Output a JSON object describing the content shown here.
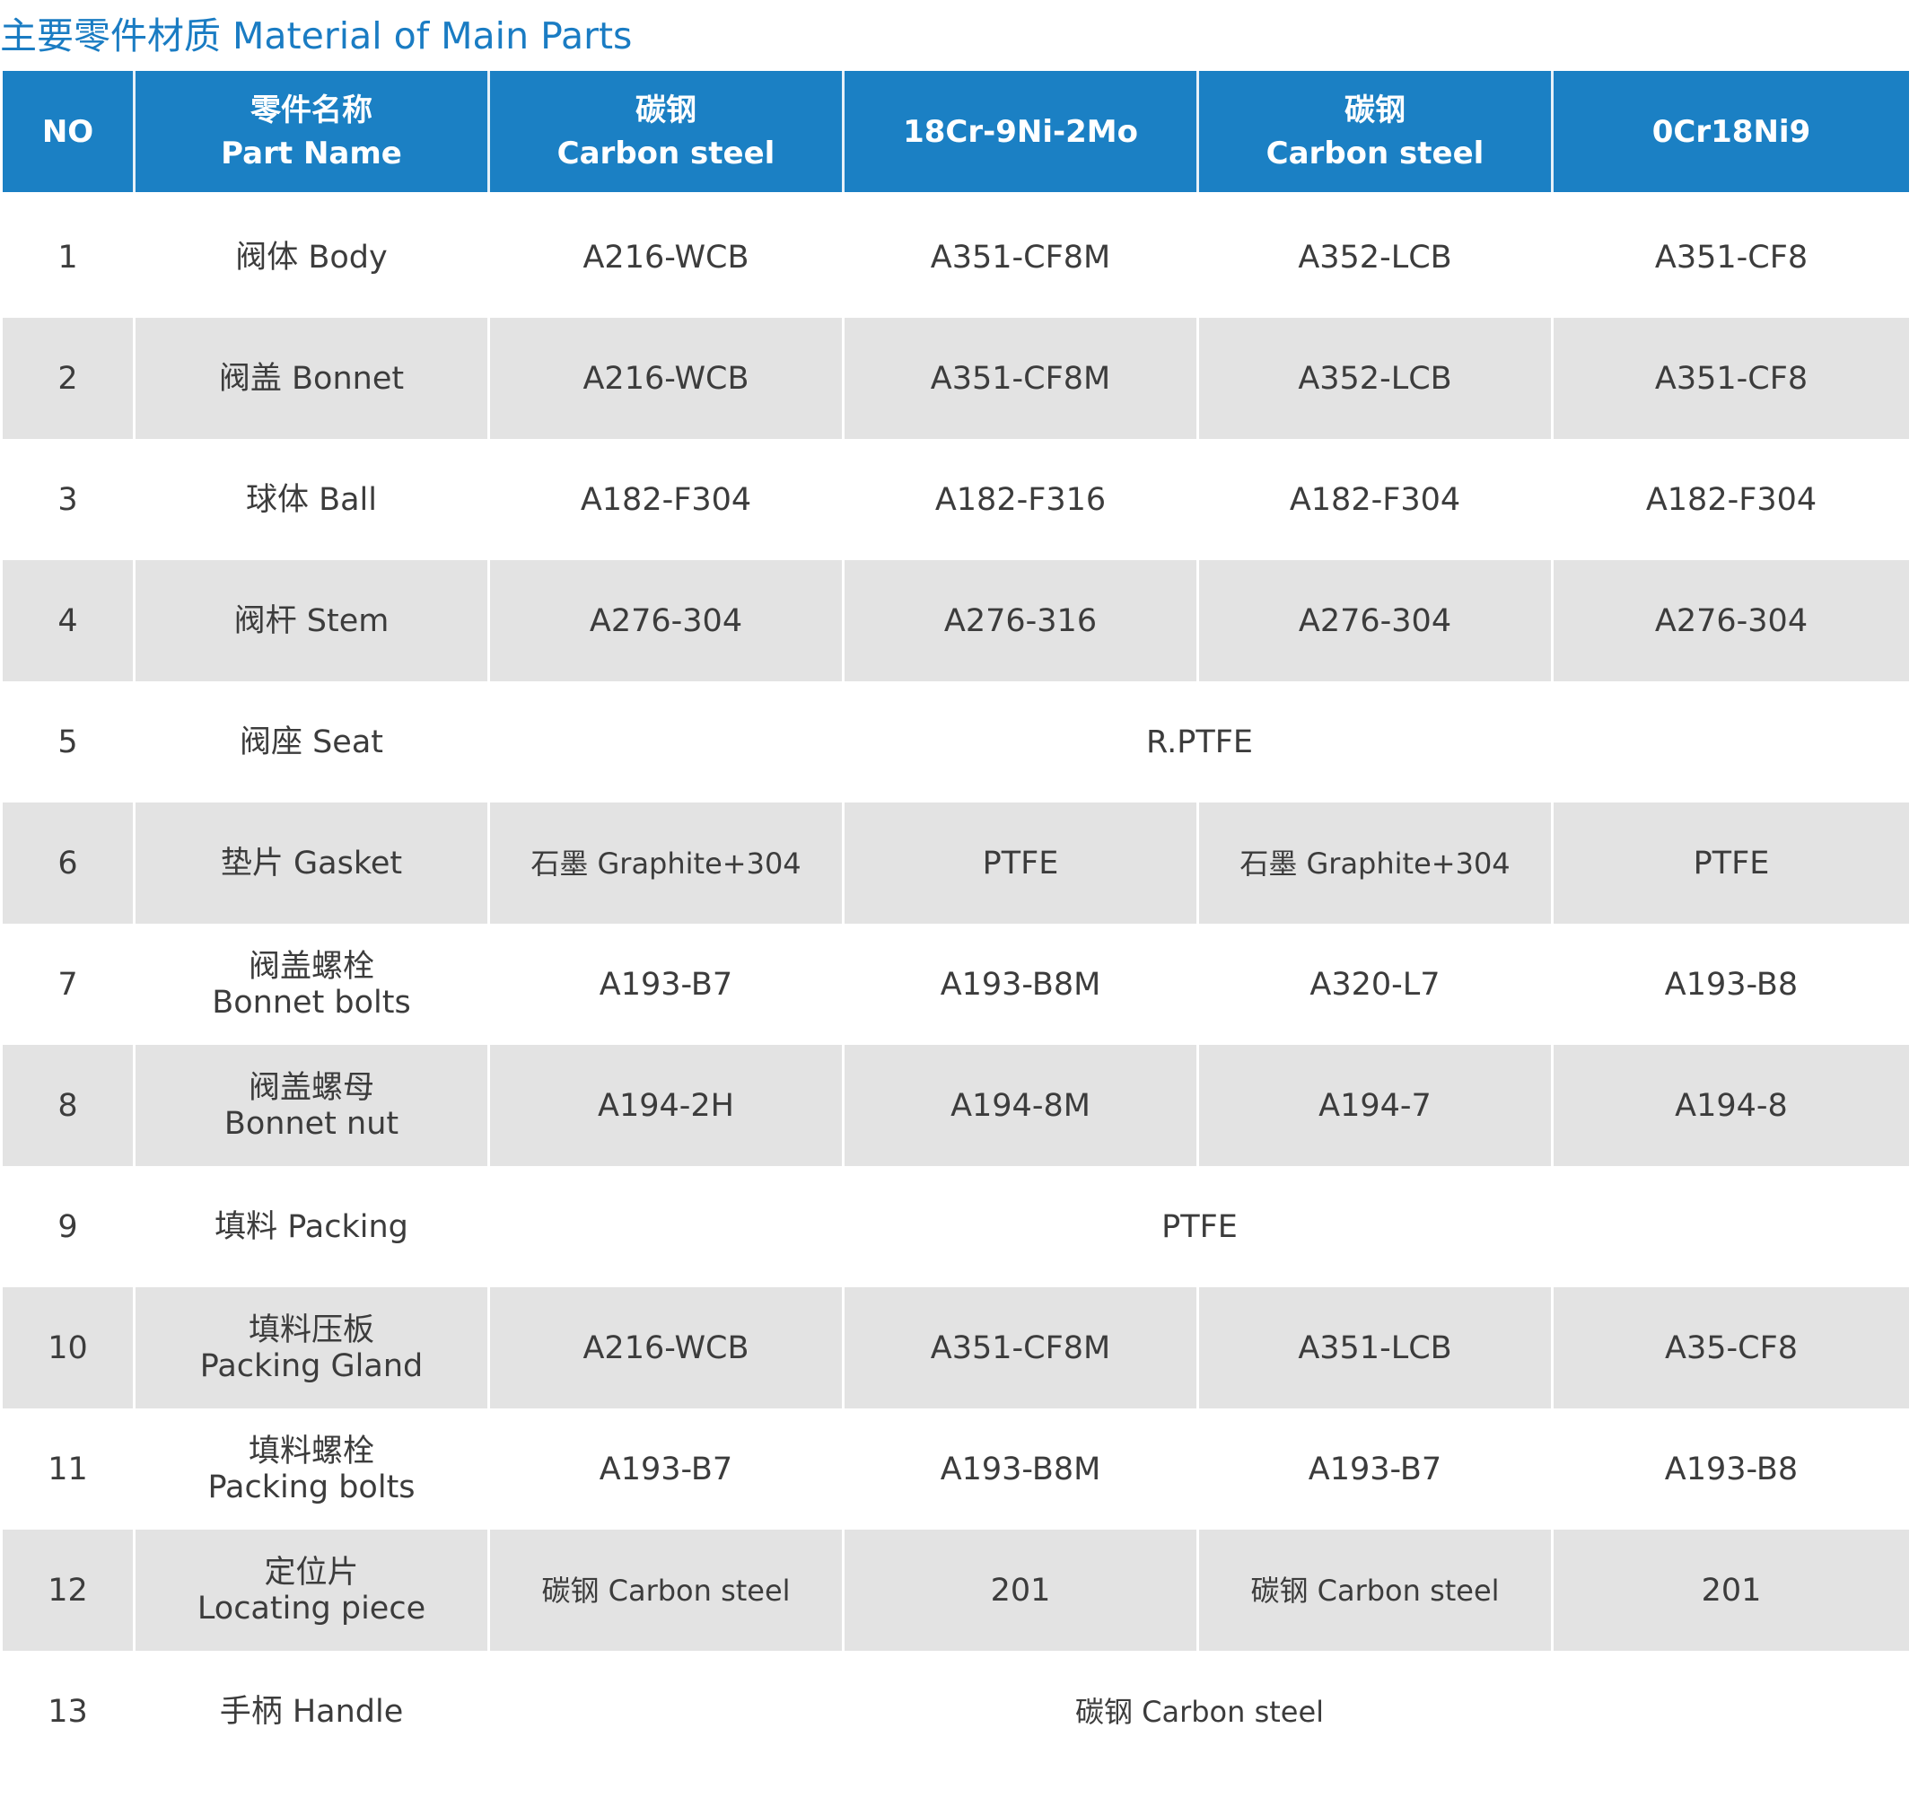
{
  "title": "主要零件材质 Material of Main Parts",
  "header": {
    "no": "NO",
    "part_name_cn": "零件名称",
    "part_name_en": "Part Name",
    "col1_cn": "碳钢",
    "col1_en": "Carbon steel",
    "col2": "18Cr-9Ni-2Mo",
    "col3_cn": "碳钢",
    "col3_en": "Carbon steel",
    "col4": "0Cr18Ni9"
  },
  "rows": [
    {
      "no": "1",
      "name1": "阀体 Body",
      "name2": "",
      "c1": "A216-WCB",
      "c2": "A351-CF8M",
      "c3": "A352-LCB",
      "c4": "A351-CF8"
    },
    {
      "no": "2",
      "name1": "阀盖 Bonnet",
      "name2": "",
      "c1": "A216-WCB",
      "c2": "A351-CF8M",
      "c3": "A352-LCB",
      "c4": "A351-CF8"
    },
    {
      "no": "3",
      "name1": "球体 Ball",
      "name2": "",
      "c1": "A182-F304",
      "c2": "A182-F316",
      "c3": "A182-F304",
      "c4": "A182-F304"
    },
    {
      "no": "4",
      "name1": "阀杆 Stem",
      "name2": "",
      "c1": "A276-304",
      "c2": "A276-316",
      "c3": "A276-304",
      "c4": "A276-304"
    },
    {
      "no": "5",
      "name1": "阀座 Seat",
      "name2": "",
      "merged": "R.PTFE"
    },
    {
      "no": "6",
      "name1": "垫片 Gasket",
      "name2": "",
      "c1": "石墨 Graphite+304",
      "c2": "PTFE",
      "c3": "石墨 Graphite+304",
      "c4": "PTFE"
    },
    {
      "no": "7",
      "name1": "阀盖螺栓",
      "name2": "Bonnet bolts",
      "c1": "A193-B7",
      "c2": "A193-B8M",
      "c3": "A320-L7",
      "c4": "A193-B8"
    },
    {
      "no": "8",
      "name1": "阀盖螺母",
      "name2": "Bonnet nut",
      "c1": "A194-2H",
      "c2": "A194-8M",
      "c3": "A194-7",
      "c4": "A194-8"
    },
    {
      "no": "9",
      "name1": "填料 Packing",
      "name2": "",
      "merged": "PTFE"
    },
    {
      "no": "10",
      "name1": "填料压板",
      "name2": "Packing Gland",
      "c1": "A216-WCB",
      "c2": "A351-CF8M",
      "c3": "A351-LCB",
      "c4": "A35-CF8"
    },
    {
      "no": "11",
      "name1": "填料螺栓",
      "name2": "Packing bolts",
      "c1": "A193-B7",
      "c2": "A193-B8M",
      "c3": "A193-B7",
      "c4": "A193-B8"
    },
    {
      "no": "12",
      "name1": "定位片",
      "name2": "Locating piece",
      "c1": "碳钢 Carbon steel",
      "c2": "201",
      "c3": "碳钢 Carbon steel",
      "c4": "201"
    },
    {
      "no": "13",
      "name1": "手柄 Handle",
      "name2": "",
      "merged": "碳钢 Carbon steel"
    }
  ]
}
